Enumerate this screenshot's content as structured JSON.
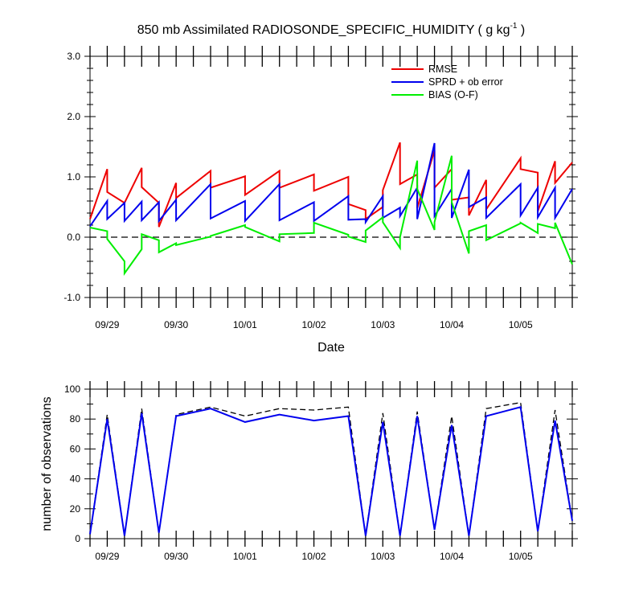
{
  "chart_data": [
    {
      "type": "line",
      "title": "850 mb Assimilated RADIOSONDE_SPECIFIC_HUMIDITY ( g kg",
      "title_sup": "-1",
      "title_end": " )",
      "xlabel": "Date",
      "ylabel": "",
      "xlim": [
        0,
        7
      ],
      "ylim": [
        -1.0,
        3.0
      ],
      "yticks": [
        -1.0,
        0.0,
        1.0,
        2.0,
        3.0
      ],
      "ytick_labels": [
        "-1.0",
        "0.0",
        "1.0",
        "2.0",
        "3.0"
      ],
      "xtick_positions": [
        0.25,
        1.25,
        2.25,
        3.25,
        4.25,
        5.25,
        6.25
      ],
      "xtick_labels": [
        "09/29",
        "09/30",
        "10/01",
        "10/02",
        "10/03",
        "10/04",
        "10/05"
      ],
      "reference_line": 0.0,
      "legend": [
        "RMSE",
        "SPRD + ob error",
        "BIAS (O-F)"
      ],
      "legend_position": "top-right",
      "colors": {
        "RMSE": "#ee0000",
        "SPRD": "#0000ee",
        "BIAS": "#00ee00"
      },
      "series": [
        {
          "name": "RMSE",
          "x": [
            0,
            0.25,
            0.25,
            0.5,
            0.5,
            0.75,
            0.75,
            1.0,
            1.0,
            1.25,
            1.25,
            1.75,
            1.75,
            2.25,
            2.25,
            2.75,
            2.75,
            3.25,
            3.25,
            3.75,
            3.75,
            4.0,
            4.0,
            4.25,
            4.25,
            4.5,
            4.5,
            4.75,
            4.75,
            5.0,
            5.0,
            5.25,
            5.25,
            5.5,
            5.5,
            5.75,
            5.75,
            6.25,
            6.25,
            6.5,
            6.5,
            6.75,
            6.75,
            7.0
          ],
          "values": [
            0.3,
            1.13,
            0.75,
            0.57,
            0.57,
            1.15,
            0.83,
            0.57,
            0.17,
            0.9,
            0.65,
            1.1,
            0.82,
            1.01,
            0.7,
            1.1,
            0.82,
            1.04,
            0.77,
            1.0,
            0.55,
            0.45,
            0.3,
            0.5,
            0.78,
            1.57,
            0.88,
            1.04,
            0.48,
            1.44,
            0.82,
            1.13,
            0.62,
            0.66,
            0.36,
            0.95,
            0.46,
            1.31,
            1.13,
            1.07,
            0.43,
            1.26,
            0.9,
            1.24
          ]
        },
        {
          "name": "SPRD + ob error",
          "x": [
            0,
            0.25,
            0.25,
            0.5,
            0.5,
            0.75,
            0.75,
            1.0,
            1.0,
            1.25,
            1.25,
            1.75,
            1.75,
            2.25,
            2.25,
            2.75,
            2.75,
            3.25,
            3.25,
            3.75,
            3.75,
            4.0,
            4.0,
            4.25,
            4.25,
            4.5,
            4.5,
            4.75,
            4.75,
            5.0,
            5.0,
            5.25,
            5.25,
            5.5,
            5.5,
            5.75,
            5.75,
            6.25,
            6.25,
            6.5,
            6.5,
            6.75,
            6.75,
            7.0
          ],
          "values": [
            0.18,
            0.6,
            0.3,
            0.57,
            0.27,
            0.59,
            0.28,
            0.58,
            0.27,
            0.62,
            0.28,
            0.88,
            0.31,
            0.6,
            0.27,
            0.88,
            0.28,
            0.58,
            0.27,
            0.68,
            0.29,
            0.3,
            0.25,
            0.68,
            0.32,
            0.49,
            0.35,
            0.82,
            0.3,
            1.56,
            0.35,
            0.8,
            0.32,
            1.12,
            0.5,
            0.66,
            0.32,
            0.88,
            0.36,
            0.82,
            0.33,
            0.82,
            0.32,
            0.8
          ]
        },
        {
          "name": "BIAS (O-F)",
          "x": [
            0,
            0.25,
            0.25,
            0.5,
            0.5,
            0.75,
            0.75,
            1.0,
            1.0,
            1.25,
            1.25,
            1.75,
            1.75,
            2.25,
            2.25,
            2.75,
            2.75,
            3.25,
            3.25,
            3.75,
            3.75,
            4.0,
            4.0,
            4.25,
            4.25,
            4.5,
            4.5,
            4.75,
            4.75,
            5.0,
            5.0,
            5.25,
            5.25,
            5.5,
            5.5,
            5.75,
            5.75,
            6.25,
            6.25,
            6.5,
            6.5,
            6.75,
            6.75,
            7.0
          ],
          "values": [
            0.16,
            0.1,
            -0.03,
            -0.4,
            -0.6,
            -0.2,
            0.05,
            -0.05,
            -0.25,
            -0.1,
            -0.13,
            0.01,
            0.02,
            0.2,
            0.17,
            -0.07,
            0.05,
            0.07,
            0.24,
            0.04,
            0.01,
            -0.08,
            0.11,
            0.33,
            0.25,
            -0.18,
            0.0,
            1.27,
            0.8,
            0.12,
            0.25,
            1.35,
            0.58,
            -0.27,
            0.1,
            0.2,
            -0.05,
            0.23,
            0.24,
            0.07,
            0.22,
            0.15,
            0.24,
            -0.45
          ]
        }
      ]
    },
    {
      "type": "line",
      "title": "",
      "xlabel": "",
      "ylabel": "number of observations",
      "xlim": [
        0,
        7
      ],
      "ylim": [
        0,
        100
      ],
      "yticks": [
        0,
        20,
        40,
        60,
        80,
        100
      ],
      "ytick_labels": [
        "0",
        "20",
        "40",
        "60",
        "80",
        "100"
      ],
      "xtick_positions": [
        0.25,
        1.25,
        2.25,
        3.25,
        4.25,
        5.25,
        6.25
      ],
      "xtick_labels": [
        "09/29",
        "09/30",
        "10/01",
        "10/02",
        "10/03",
        "10/04",
        "10/05"
      ],
      "colors": {
        "used": "#0000ee",
        "possible": "#000000"
      },
      "series": [
        {
          "name": "possible",
          "style": "dashed",
          "x": [
            0,
            0.25,
            0.5,
            0.75,
            1.0,
            1.25,
            1.75,
            2.25,
            2.75,
            3.25,
            3.75,
            4.0,
            4.25,
            4.5,
            4.75,
            5.0,
            5.25,
            5.5,
            5.75,
            6.25,
            6.5,
            6.75,
            7.0
          ],
          "values": [
            3,
            83,
            2,
            87,
            4,
            83,
            88,
            82,
            87,
            86,
            88,
            2,
            84,
            2,
            85,
            6,
            82,
            2,
            87,
            91,
            5,
            86,
            12
          ]
        },
        {
          "name": "used",
          "style": "solid",
          "x": [
            0,
            0.25,
            0.5,
            0.75,
            1.0,
            1.25,
            1.75,
            2.25,
            2.75,
            3.25,
            3.75,
            4.0,
            4.25,
            4.5,
            4.75,
            5.0,
            5.25,
            5.5,
            5.75,
            6.25,
            6.5,
            6.75,
            7.0
          ],
          "values": [
            3,
            80,
            2,
            84,
            4,
            82,
            87,
            78,
            83,
            79,
            82,
            2,
            78,
            2,
            82,
            6,
            76,
            2,
            82,
            88,
            5,
            79,
            12
          ]
        }
      ]
    }
  ]
}
